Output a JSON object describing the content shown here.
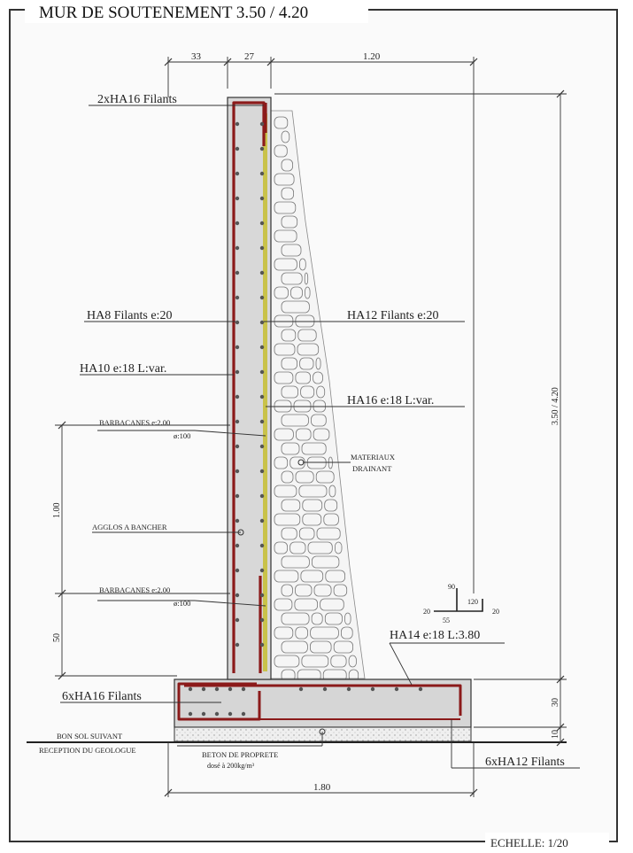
{
  "title": "MUR DE SOUTENEMENT 3.50 / 4.20",
  "scale": "ECHELLE: 1/20",
  "dimensions": {
    "top_a": "33",
    "top_b": "27",
    "top_c": "1.20",
    "right_height": "3.50 / 4.20",
    "right_footing": "30",
    "right_blinding": "10",
    "left_upper": "1.00",
    "left_lower": "50",
    "bottom_width": "1.80"
  },
  "labels": {
    "top_bars": "2xHA16 Filants",
    "ha8": "HA8 Filants  e:20",
    "ha12": "HA12 Filants  e:20",
    "ha10": "HA10  e:18  L:var.",
    "ha16": "HA16  e:18  L:var.",
    "barbacanes1_a": "BARBACANES e:2.00",
    "barbacanes1_b": "ø:100",
    "drain_a": "MATERIAUX",
    "drain_b": "DRAINANT",
    "agglos": "AGGLOS A BANCHER",
    "barbacanes2_a": "BARBACANES e:2.00",
    "barbacanes2_b": "ø:100",
    "ha14": "HA14  e:18  L:3.80",
    "six_ha16": "6xHA16 Filants",
    "six_ha12": "6xHA12 Filants",
    "ground_a": "BON SOL SUIVANT",
    "ground_b": "RECEPTION DU GEOLOGUE",
    "beton_a": "BETON DE PROPRETE",
    "beton_b": "dosé à 200kg/m³"
  },
  "hook_detail": {
    "v": "90",
    "left": "20",
    "right_top": "120",
    "right": "20",
    "bottom": "55"
  },
  "colors": {
    "rebar": "#8b1a1a",
    "concrete": "#d6d6d6",
    "membrane": "#c9c24a",
    "stone": "#f4f4f4"
  }
}
